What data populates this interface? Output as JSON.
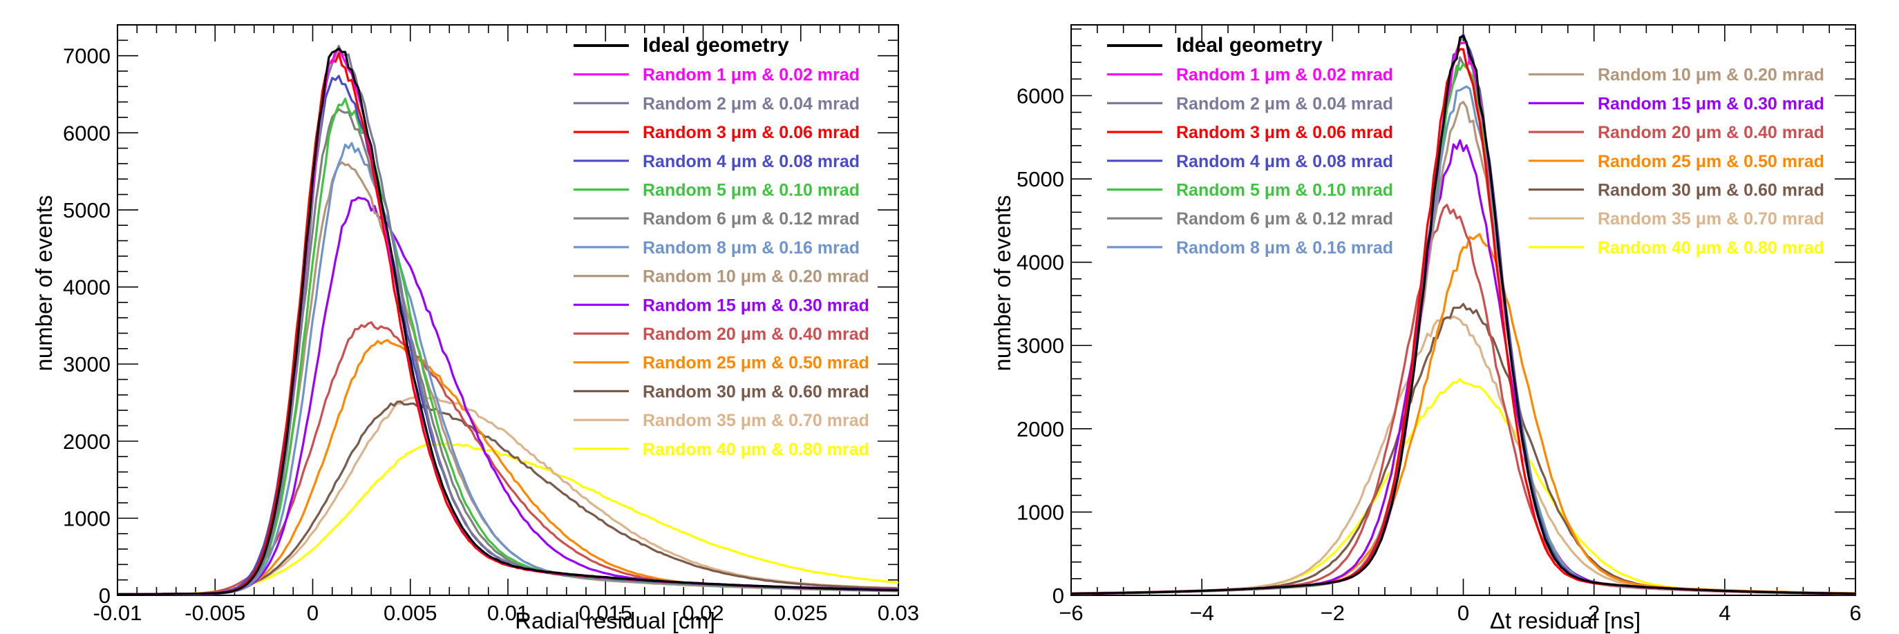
{
  "chart_data": [
    {
      "type": "line",
      "xlabel": "Radial residual [cm]",
      "ylabel": "number of events",
      "xlim": [
        -0.01,
        0.03
      ],
      "ylim": [
        0,
        7400
      ],
      "xticks": [
        "-0.01",
        "-0.005",
        "0",
        "0.005",
        "0.01",
        "0.015",
        "0.02",
        "0.025",
        "0.03"
      ],
      "yticks": [
        "0",
        "1000",
        "2000",
        "3000",
        "4000",
        "5000",
        "6000",
        "7000"
      ],
      "legend_placement": "top-right",
      "legend_columns": 1,
      "series": [
        {
          "label": "Ideal geometry",
          "color": "#000000",
          "mu": 0.0012,
          "peak": 7050,
          "sl": 0.0016,
          "sr": 0.0028,
          "tail": 0.1,
          "tau": 0.012
        },
        {
          "label": "Random 1 μm & 0.02 mrad",
          "color": "#ff00ff",
          "mu": 0.0012,
          "peak": 7000,
          "sl": 0.0016,
          "sr": 0.0028,
          "tail": 0.1,
          "tau": 0.012
        },
        {
          "label": "Random 2 μm & 0.04 mrad",
          "color": "#7a7a9a",
          "mu": 0.0013,
          "peak": 7050,
          "sl": 0.0016,
          "sr": 0.0029,
          "tail": 0.1,
          "tau": 0.012
        },
        {
          "label": "Random 3 μm & 0.06 mrad",
          "color": "#ff0000",
          "mu": 0.0011,
          "peak": 6950,
          "sl": 0.0016,
          "sr": 0.0028,
          "tail": 0.1,
          "tau": 0.012
        },
        {
          "label": "Random 4 μm & 0.08 mrad",
          "color": "#4a4acc",
          "mu": 0.0012,
          "peak": 6700,
          "sl": 0.0017,
          "sr": 0.003,
          "tail": 0.1,
          "tau": 0.012
        },
        {
          "label": "Random 5 μm & 0.10 mrad",
          "color": "#3ec43e",
          "mu": 0.0015,
          "peak": 6350,
          "sl": 0.0017,
          "sr": 0.0032,
          "tail": 0.1,
          "tau": 0.012
        },
        {
          "label": "Random 6 μm & 0.12 mrad",
          "color": "#808080",
          "mu": 0.0013,
          "peak": 6300,
          "sl": 0.0017,
          "sr": 0.0032,
          "tail": 0.1,
          "tau": 0.012
        },
        {
          "label": "Random 8 μm & 0.16 mrad",
          "color": "#6f94cc",
          "mu": 0.0018,
          "peak": 5800,
          "sl": 0.0018,
          "sr": 0.0034,
          "tail": 0.1,
          "tau": 0.012
        },
        {
          "label": "Random 10 μm & 0.20 mrad",
          "color": "#b4967a",
          "mu": 0.0015,
          "peak": 5550,
          "sl": 0.0018,
          "sr": 0.0036,
          "tail": 0.1,
          "tau": 0.012
        },
        {
          "label": "Random 15 μm & 0.30 mrad",
          "color": "#9900ff",
          "mu": 0.0023,
          "peak": 5100,
          "sl": 0.002,
          "sr": 0.0044,
          "tail": 0.1,
          "tau": 0.014
        },
        {
          "label": "Random 20 μm & 0.40 mrad",
          "color": "#cc5050",
          "mu": 0.0028,
          "peak": 3500,
          "sl": 0.0026,
          "sr": 0.0052,
          "tail": 0.1,
          "tau": 0.016
        },
        {
          "label": "Random 25 μm & 0.50 mrad",
          "color": "#ff8800",
          "mu": 0.0036,
          "peak": 3280,
          "sl": 0.0027,
          "sr": 0.0052,
          "tail": 0.1,
          "tau": 0.016
        },
        {
          "label": "Random 30 μm & 0.60 mrad",
          "color": "#7a5a4a",
          "mu": 0.0045,
          "peak": 2480,
          "sl": 0.0032,
          "sr": 0.0072,
          "tail": 0.12,
          "tau": 0.02
        },
        {
          "label": "Random 35 μm & 0.70 mrad",
          "color": "#dcb48c",
          "mu": 0.0055,
          "peak": 2580,
          "sl": 0.0036,
          "sr": 0.0068,
          "tail": 0.12,
          "tau": 0.02
        },
        {
          "label": "Random 40 μm & 0.80 mrad",
          "color": "#ffff00",
          "mu": 0.0065,
          "peak": 1960,
          "sl": 0.0042,
          "sr": 0.009,
          "tail": 0.15,
          "tau": 0.024
        }
      ]
    },
    {
      "type": "line",
      "xlabel": "Δt residual [ns]",
      "ylabel": "number of events",
      "xlim": [
        -6,
        6
      ],
      "ylim": [
        0,
        6850
      ],
      "xticks": [
        "−6",
        "−4",
        "−2",
        "0",
        "2",
        "4",
        "6"
      ],
      "yticks": [
        "0",
        "1000",
        "2000",
        "3000",
        "4000",
        "5000",
        "6000"
      ],
      "legend_placement": "top",
      "legend_columns": 2,
      "series": [
        {
          "label": "Ideal geometry",
          "color": "#000000",
          "mu": 0.0,
          "peak": 6650,
          "s": 0.55,
          "tail": 0.06,
          "tau": 2.0
        },
        {
          "label": "Random 1 μm & 0.02 mrad",
          "color": "#ff00ff",
          "mu": 0.0,
          "peak": 6600,
          "s": 0.55,
          "tail": 0.06,
          "tau": 2.0
        },
        {
          "label": "Random 2 μm & 0.04 mrad",
          "color": "#7a7a9a",
          "mu": 0.0,
          "peak": 6650,
          "s": 0.55,
          "tail": 0.06,
          "tau": 2.0
        },
        {
          "label": "Random 3 μm & 0.06 mrad",
          "color": "#ff0000",
          "mu": -0.05,
          "peak": 6550,
          "s": 0.55,
          "tail": 0.06,
          "tau": 2.0
        },
        {
          "label": "Random 4 μm & 0.08 mrad",
          "color": "#4a4acc",
          "mu": 0.0,
          "peak": 6650,
          "s": 0.56,
          "tail": 0.06,
          "tau": 2.0
        },
        {
          "label": "Random 5 μm & 0.10 mrad",
          "color": "#3ec43e",
          "mu": 0.0,
          "peak": 6400,
          "s": 0.57,
          "tail": 0.06,
          "tau": 2.0
        },
        {
          "label": "Random 6 μm & 0.12 mrad",
          "color": "#808080",
          "mu": 0.0,
          "peak": 6450,
          "s": 0.57,
          "tail": 0.06,
          "tau": 2.0
        },
        {
          "label": "Random 8 μm & 0.16 mrad",
          "color": "#6f94cc",
          "mu": 0.0,
          "peak": 6100,
          "s": 0.59,
          "tail": 0.06,
          "tau": 2.0
        },
        {
          "label": "Random 10 μm & 0.20 mrad",
          "color": "#b4967a",
          "mu": 0.0,
          "peak": 5850,
          "s": 0.6,
          "tail": 0.06,
          "tau": 2.0
        },
        {
          "label": "Random 15 μm & 0.30 mrad",
          "color": "#9900ff",
          "mu": -0.05,
          "peak": 5420,
          "s": 0.63,
          "tail": 0.07,
          "tau": 2.0
        },
        {
          "label": "Random 20 μm & 0.40 mrad",
          "color": "#cc5050",
          "mu": -0.2,
          "peak": 4650,
          "s": 0.68,
          "tail": 0.08,
          "tau": 2.0
        },
        {
          "label": "Random 25 μm & 0.50 mrad",
          "color": "#ff8800",
          "mu": 0.2,
          "peak": 4300,
          "s": 0.75,
          "tail": 0.08,
          "tau": 2.2
        },
        {
          "label": "Random 30 μm & 0.60 mrad",
          "color": "#7a5a4a",
          "mu": 0.0,
          "peak": 3480,
          "s": 0.9,
          "tail": 0.09,
          "tau": 2.3
        },
        {
          "label": "Random 35 μm & 0.70 mrad",
          "color": "#dcb48c",
          "mu": -0.2,
          "peak": 3350,
          "s": 0.92,
          "tail": 0.09,
          "tau": 2.3
        },
        {
          "label": "Random 40 μm & 0.80 mrad",
          "color": "#ffff00",
          "mu": 0.0,
          "peak": 2580,
          "s": 1.05,
          "tail": 0.1,
          "tau": 2.5
        }
      ]
    }
  ]
}
